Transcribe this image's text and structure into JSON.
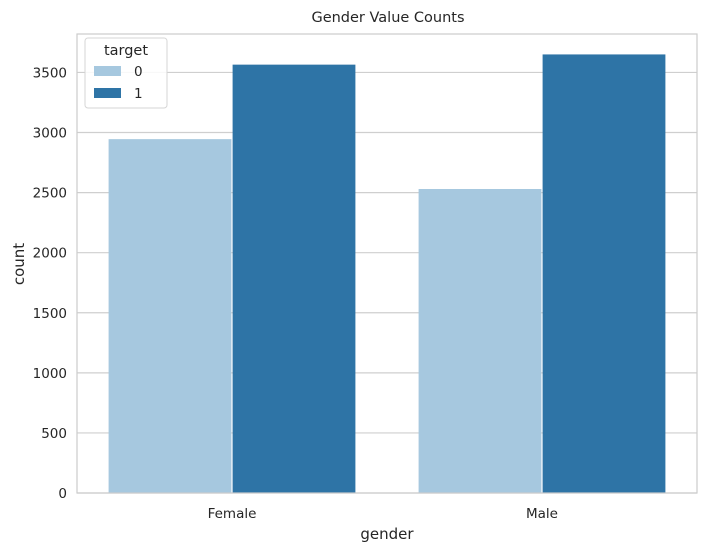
{
  "chart_data": {
    "type": "bar",
    "title": "Gender Value Counts",
    "xlabel": "gender",
    "ylabel": "count",
    "categories": [
      "Female",
      "Male"
    ],
    "series": [
      {
        "name": "0",
        "values": [
          2945,
          2530
        ]
      },
      {
        "name": "1",
        "values": [
          3565,
          3650
        ]
      }
    ],
    "ylim": [
      0,
      3820
    ],
    "yticks": [
      "0",
      "500",
      "1000",
      "1500",
      "2000",
      "2500",
      "3000",
      "3500"
    ],
    "grid": true,
    "legend": {
      "title": "target",
      "placement": "top-left"
    },
    "colors": {
      "series_0": "#a6c8df",
      "series_1": "#2e74a6",
      "grid": "#cfcfcf",
      "frame": "#cccccc"
    }
  }
}
